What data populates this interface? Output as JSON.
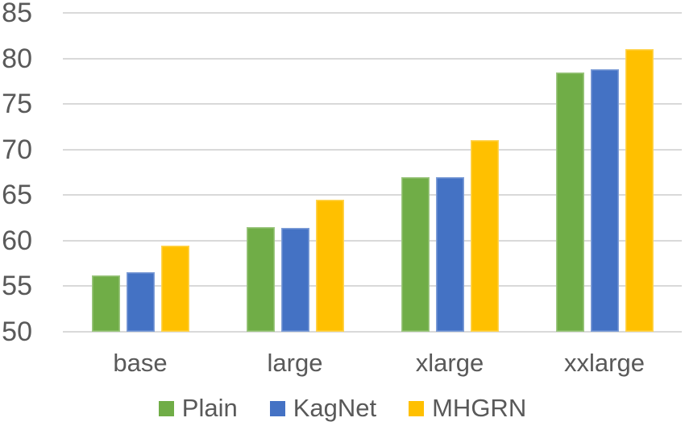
{
  "chart_data": {
    "type": "bar",
    "title": "",
    "xlabel": "",
    "ylabel": "",
    "categories": [
      "base",
      "large",
      "xlarge",
      "xxlarge"
    ],
    "series": [
      {
        "name": "Plain",
        "color": "#70AD47",
        "values": [
          56.2,
          61.5,
          67.0,
          78.5
        ]
      },
      {
        "name": "KagNet",
        "color": "#4472C4",
        "values": [
          56.5,
          61.4,
          67.0,
          78.8
        ]
      },
      {
        "name": "MHGRN",
        "color": "#FFC000",
        "values": [
          59.5,
          64.5,
          71.0,
          81.0
        ]
      }
    ],
    "ylim": [
      50,
      85
    ],
    "ytick_step": 5,
    "ytick_labels": [
      "50",
      "55",
      "60",
      "65",
      "70",
      "75",
      "80",
      "85"
    ],
    "grid": true,
    "legend_position": "bottom",
    "colors": {
      "text": "#595959",
      "gridline": "#D9D9D9",
      "background": "#FFFFFF"
    }
  }
}
